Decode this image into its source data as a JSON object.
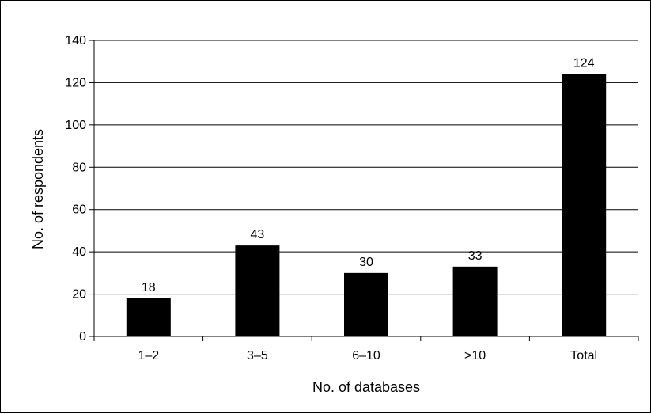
{
  "chart_data": {
    "type": "bar",
    "categories": [
      "1–2",
      "3–5",
      "6–10",
      ">10",
      "Total"
    ],
    "values": [
      18,
      43,
      30,
      33,
      124
    ],
    "data_labels": [
      "18",
      "43",
      "30",
      "33",
      "124"
    ],
    "xlabel": "No. of databases",
    "ylabel": "No. of respondents",
    "ylim": [
      0,
      140
    ],
    "yticks": [
      0,
      20,
      40,
      60,
      80,
      100,
      120,
      140
    ],
    "ytick_labels": [
      "0",
      "20",
      "40",
      "60",
      "80",
      "100",
      "120",
      "140"
    ],
    "grid": true,
    "bar_color": "#000000",
    "grid_color": "#000000"
  }
}
